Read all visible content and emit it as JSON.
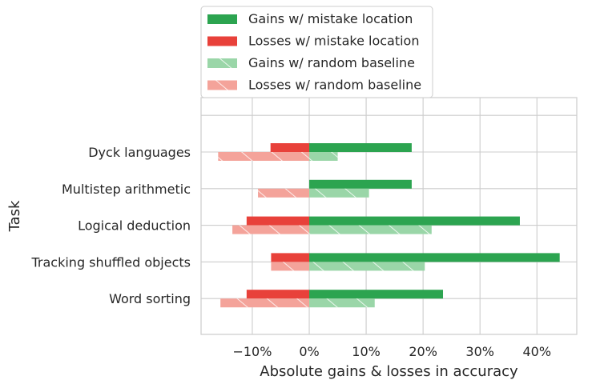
{
  "chart_data": {
    "type": "bar",
    "orientation": "horizontal",
    "categories": [
      "Dyck languages",
      "Multistep arithmetic",
      "Logical deduction",
      "Tracking shuffled objects",
      "Word sorting"
    ],
    "series": [
      {
        "name": "Gains w/ mistake location",
        "color": "#2ca450",
        "hatch": false,
        "values": [
          18,
          18,
          37,
          44,
          23.5
        ]
      },
      {
        "name": "Losses w/ mistake location",
        "color": "#e8413a",
        "hatch": false,
        "values": [
          -6.8,
          0,
          -11,
          -6.7,
          -11
        ]
      },
      {
        "name": "Gains w/ random baseline",
        "color": "#9ad6a8",
        "hatch": true,
        "values": [
          5,
          10.5,
          21.5,
          20.3,
          11.5
        ]
      },
      {
        "name": "Losses w/ random baseline",
        "color": "#f4a39a",
        "hatch": true,
        "values": [
          -16,
          -9,
          -13.5,
          -6.7,
          -15.6
        ]
      }
    ],
    "xlabel": "Absolute gains & losses in accuracy",
    "ylabel": "Task",
    "xlim": [
      -19,
      47
    ],
    "xticks": [
      -10,
      0,
      10,
      20,
      30,
      40
    ],
    "xtick_labels": [
      "−10%",
      "0%",
      "10%",
      "20%",
      "30%",
      "40%"
    ],
    "grid": true,
    "legend": "top-left, outside above plot"
  }
}
